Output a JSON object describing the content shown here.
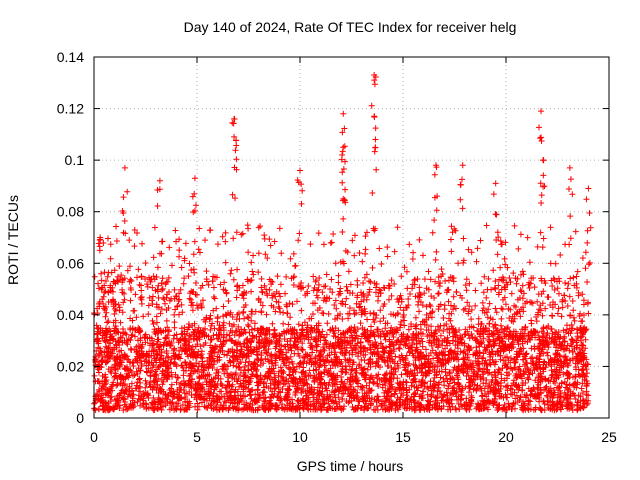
{
  "chart_data": {
    "type": "scatter",
    "title": "Day 140 of 2024, Rate Of TEC Index for receiver helg",
    "xlabel": "GPS time / hours",
    "ylabel": "ROTI / TECUs",
    "xlim": [
      0,
      25
    ],
    "ylim": [
      0,
      0.14
    ],
    "xticks": [
      0,
      5,
      10,
      15,
      20,
      25
    ],
    "yticks": [
      0,
      0.02,
      0.04,
      0.06,
      0.08,
      0.1,
      0.12,
      0.14
    ],
    "xtick_labels": [
      "0",
      "5",
      "10",
      "15",
      "20",
      "25"
    ],
    "ytick_labels": [
      "0",
      "0.02",
      "0.04",
      "0.06",
      "0.08",
      "0.1",
      "0.12",
      "0.14"
    ],
    "grid": true,
    "marker": "+",
    "color": "#ff0000",
    "series": [
      {
        "name": "ROTI",
        "x_range": [
          0,
          24
        ],
        "typical_range": [
          0.003,
          0.035
        ],
        "note": "dense scatter of several thousand points; notable peaks listed below",
        "peaks": [
          {
            "x": 0.3,
            "y": 0.07
          },
          {
            "x": 1.5,
            "y": 0.097
          },
          {
            "x": 3.2,
            "y": 0.092
          },
          {
            "x": 4.9,
            "y": 0.093
          },
          {
            "x": 6.8,
            "y": 0.116
          },
          {
            "x": 6.8,
            "y": 0.109
          },
          {
            "x": 10.0,
            "y": 0.096
          },
          {
            "x": 12.1,
            "y": 0.118
          },
          {
            "x": 12.1,
            "y": 0.105
          },
          {
            "x": 12.1,
            "y": 0.085
          },
          {
            "x": 13.6,
            "y": 0.133
          },
          {
            "x": 13.6,
            "y": 0.117
          },
          {
            "x": 16.6,
            "y": 0.098
          },
          {
            "x": 17.9,
            "y": 0.098
          },
          {
            "x": 19.5,
            "y": 0.091
          },
          {
            "x": 21.7,
            "y": 0.119
          },
          {
            "x": 21.8,
            "y": 0.1
          },
          {
            "x": 23.1,
            "y": 0.097
          },
          {
            "x": 24.0,
            "y": 0.089
          }
        ]
      }
    ]
  }
}
